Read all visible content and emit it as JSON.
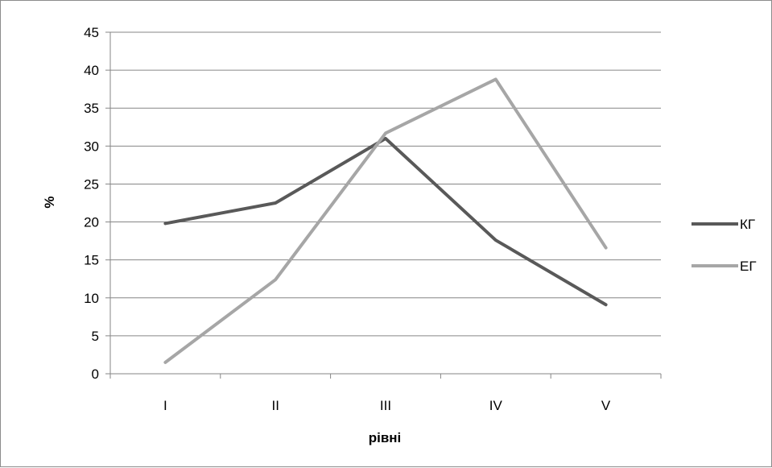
{
  "chart_data": {
    "type": "line",
    "categories": [
      "I",
      "II",
      "III",
      "IV",
      "V"
    ],
    "series": [
      {
        "name": "КГ",
        "values": [
          19.8,
          22.5,
          31.0,
          17.6,
          9.1
        ],
        "color": "#595959"
      },
      {
        "name": "ЕГ",
        "values": [
          1.5,
          12.4,
          31.7,
          38.8,
          16.6
        ],
        "color": "#a6a6a6"
      }
    ],
    "xlabel": "рівні",
    "ylabel": "%",
    "ylim": [
      0,
      45
    ],
    "yticks": [
      "0",
      "5",
      "10",
      "15",
      "20",
      "25",
      "30",
      "35",
      "40",
      "45"
    ],
    "grid": true,
    "legend": "right",
    "gridline_color": "#868686"
  }
}
